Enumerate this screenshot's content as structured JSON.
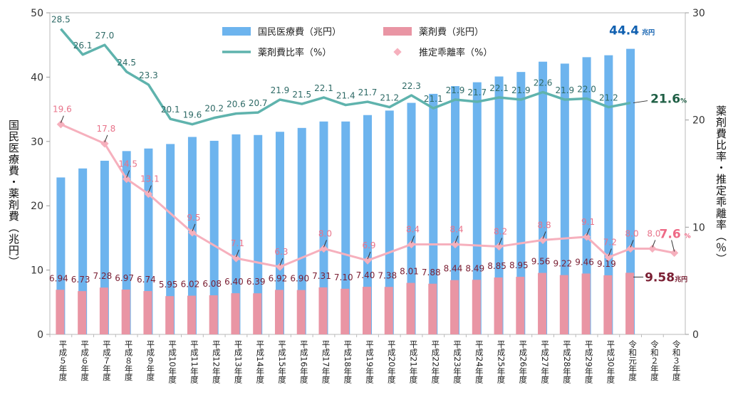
{
  "chart_data": {
    "type": "bar",
    "categories": [
      "平成５年度",
      "平成６年度",
      "平成７年度",
      "平成８年度",
      "平成９年度",
      "平成10年度",
      "平成11年度",
      "平成12年度",
      "平成13年度",
      "平成14年度",
      "平成15年度",
      "平成16年度",
      "平成17年度",
      "平成18年度",
      "平成19年度",
      "平成20年度",
      "平成21年度",
      "平成22年度",
      "平成23年度",
      "平成24年度",
      "平成25年度",
      "平成26年度",
      "平成27年度",
      "平成28年度",
      "平成29年度",
      "平成30年度",
      "令和元年度",
      "令和２年度",
      "令和３年度"
    ],
    "ylabel_left": "国民医療費・薬剤費（兆円）",
    "ylabel_right": "薬剤費比率・推定乖離率（％）",
    "ylim_left": [
      0,
      50
    ],
    "ylim_right": [
      0,
      30
    ],
    "yticks_left": [
      "0",
      "10",
      "20",
      "30",
      "40",
      "50"
    ],
    "yticks_right": [
      "0",
      "10",
      "20",
      "30"
    ],
    "legend": {
      "medical": "国民医療費（兆円）",
      "drug": "薬剤費（兆円）",
      "ratio": "薬剤費比率（%）",
      "gap": "推定乖離率（%）"
    },
    "colors": {
      "medical": "#6db4ee",
      "drug": "#e995a4",
      "ratio": "#5fb3ad",
      "gap": "#f6b0bd",
      "highlight_medical": "#1060b0",
      "highlight_ratio": "#1f5f45",
      "highlight_gap": "#ee6a86",
      "highlight_drug": "#7a1f33"
    },
    "series": [
      {
        "name": "国民医療費（兆円）",
        "axis": "left",
        "values": [
          24.4,
          25.8,
          27.0,
          28.5,
          28.9,
          29.6,
          30.7,
          30.1,
          31.1,
          31.0,
          31.5,
          32.1,
          33.1,
          33.1,
          34.1,
          34.8,
          36.0,
          37.4,
          38.6,
          39.2,
          40.1,
          40.8,
          42.4,
          42.1,
          43.1,
          43.4,
          44.4,
          null,
          null
        ]
      },
      {
        "name": "薬剤費（兆円）",
        "axis": "left",
        "values": [
          6.94,
          6.73,
          7.28,
          6.97,
          6.74,
          5.95,
          6.02,
          6.08,
          6.4,
          6.39,
          6.92,
          6.9,
          7.31,
          7.1,
          7.4,
          7.38,
          8.01,
          7.88,
          8.44,
          8.49,
          8.85,
          8.95,
          9.56,
          9.22,
          9.46,
          9.19,
          9.58,
          null,
          null
        ]
      },
      {
        "name": "薬剤費比率（%）",
        "axis": "right",
        "values": [
          28.5,
          26.1,
          27.0,
          24.5,
          23.3,
          20.1,
          19.6,
          20.2,
          20.6,
          20.7,
          21.9,
          21.5,
          22.1,
          21.4,
          21.7,
          21.2,
          22.3,
          21.1,
          21.9,
          21.7,
          22.1,
          21.9,
          22.6,
          21.9,
          22.0,
          21.2,
          21.6,
          null,
          null
        ]
      },
      {
        "name": "推定乖離率（%）",
        "axis": "right",
        "values": [
          19.6,
          null,
          17.8,
          14.5,
          13.1,
          null,
          9.5,
          null,
          7.1,
          null,
          6.3,
          null,
          8.0,
          null,
          6.9,
          null,
          8.4,
          null,
          8.4,
          null,
          8.2,
          null,
          8.8,
          null,
          9.1,
          7.2,
          8.0,
          8.0,
          7.6
        ]
      }
    ],
    "labels": {
      "drug": [
        "6.94",
        "6.73",
        "7.28",
        "6.97",
        "6.74",
        "5.95",
        "6.02",
        "6.08",
        "6.40",
        "6.39",
        "6.92",
        "6.90",
        "7.31",
        "7.10",
        "7.40",
        "7.38",
        "8.01",
        "7.88",
        "8.44",
        "8.49",
        "8.85",
        "8.95",
        "9.56",
        "9.22",
        "9.46",
        "9.19"
      ],
      "ratio": [
        "28.5",
        "26.1",
        "27.0",
        "24.5",
        "23.3",
        "20.1",
        "19.6",
        "20.2",
        "20.6",
        "20.7",
        "21.9",
        "21.5",
        "22.1",
        "21.4",
        "21.7",
        "21.2",
        "22.3",
        "21.1",
        "21.9",
        "21.7",
        "22.1",
        "21.9",
        "22.6",
        "21.9",
        "22.0",
        "21.2"
      ],
      "gap": [
        {
          "i": 0,
          "t": "19.6"
        },
        {
          "i": 2,
          "t": "17.8"
        },
        {
          "i": 3,
          "t": "14.5"
        },
        {
          "i": 4,
          "t": "13.1"
        },
        {
          "i": 6,
          "t": "9.5"
        },
        {
          "i": 8,
          "t": "7.1"
        },
        {
          "i": 10,
          "t": "6.3"
        },
        {
          "i": 12,
          "t": "8.0"
        },
        {
          "i": 14,
          "t": "6.9"
        },
        {
          "i": 16,
          "t": "8.4"
        },
        {
          "i": 18,
          "t": "8.4"
        },
        {
          "i": 20,
          "t": "8.2"
        },
        {
          "i": 22,
          "t": "8.8"
        },
        {
          "i": 24,
          "t": "9.1"
        },
        {
          "i": 25,
          "t": "7.2"
        },
        {
          "i": 26,
          "t": "8.0"
        },
        {
          "i": 27,
          "t": "8.0"
        }
      ]
    },
    "highlights": {
      "medical": {
        "value": "44.4",
        "unit": "兆円"
      },
      "ratio": {
        "value": "21.6",
        "unit": "%"
      },
      "gap": {
        "value": "7.6",
        "unit": "%"
      },
      "drug": {
        "value": "9.58",
        "unit": "兆円"
      }
    }
  }
}
